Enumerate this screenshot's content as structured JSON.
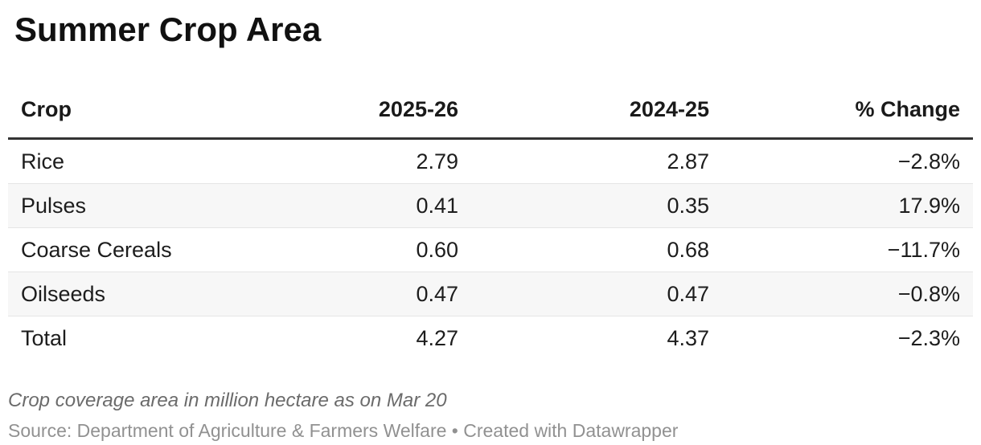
{
  "title": "Summer Crop Area",
  "table": {
    "columns": [
      "Crop",
      "2025-26",
      "2024-25",
      "% Change"
    ],
    "rows": [
      {
        "cells": [
          "Rice",
          "2.79",
          "2.87",
          "−2.8%"
        ]
      },
      {
        "cells": [
          "Pulses",
          "0.41",
          "0.35",
          "17.9%"
        ]
      },
      {
        "cells": [
          "Coarse Cereals",
          "0.60",
          "0.68",
          "−11.7%"
        ]
      },
      {
        "cells": [
          "Oilseeds",
          "0.47",
          "0.47",
          "−0.8%"
        ]
      },
      {
        "cells": [
          "Total",
          "4.27",
          "4.37",
          "−2.3%"
        ]
      }
    ]
  },
  "notes": "Crop coverage area in million hectare as on Mar 20",
  "source": "Source: Department of Agriculture & Farmers Welfare • Created with Datawrapper",
  "colors": {
    "title_text": "#111111",
    "body_text": "#1d1d1d",
    "header_rule": "#333333",
    "row_stripe": "#f7f7f7",
    "row_divider": "#e5e5e5",
    "notes_text": "#6b6b6b",
    "source_text": "#919191",
    "background": "#ffffff"
  },
  "chart_data": {
    "type": "table",
    "title": "Summer Crop Area",
    "columns": [
      "Crop",
      "2025-26",
      "2024-25",
      "% Change"
    ],
    "rows": [
      [
        "Rice",
        2.79,
        2.87,
        -2.8
      ],
      [
        "Pulses",
        0.41,
        0.35,
        17.9
      ],
      [
        "Coarse Cereals",
        0.6,
        0.68,
        -11.7
      ],
      [
        "Oilseeds",
        0.47,
        0.47,
        -0.8
      ],
      [
        "Total",
        4.27,
        4.37,
        -2.3
      ]
    ],
    "units": "million hectare",
    "notes": "Crop coverage area in million hectare as on Mar 20",
    "source": "Department of Agriculture & Farmers Welfare",
    "layout_hints": {
      "striped_rows": [
        1,
        3
      ],
      "numeric_columns_right_aligned": true,
      "header_rule": true
    }
  }
}
